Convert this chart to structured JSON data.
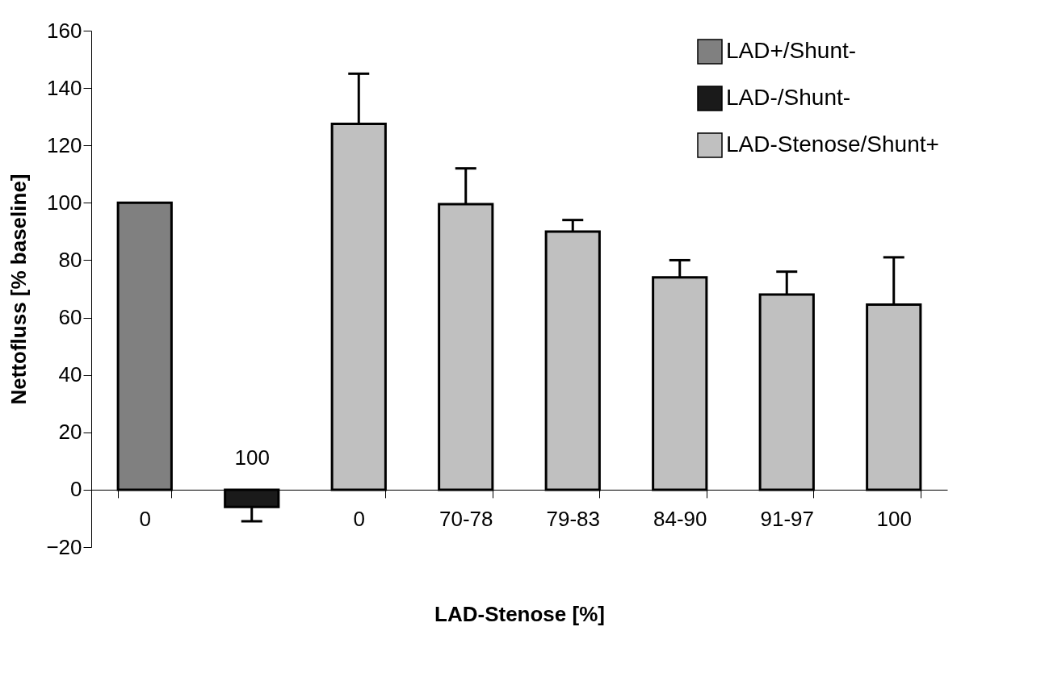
{
  "chart_data": {
    "type": "bar",
    "xlabel": "LAD-Stenose [%]",
    "ylabel": "Nettofluss [% baseline]",
    "categories": [
      "0",
      "100",
      "0",
      "70-78",
      "79-83",
      "84-90",
      "91-97",
      "100"
    ],
    "series": [
      {
        "name": "LAD+/Shunt-",
        "color": "#808080",
        "values": [
          100,
          null,
          null,
          null,
          null,
          null,
          null,
          null
        ],
        "errors": [
          null,
          null,
          null,
          null,
          null,
          null,
          null,
          null
        ]
      },
      {
        "name": "LAD-/Shunt-",
        "color": "#1a1a1a",
        "values": [
          null,
          -6,
          null,
          null,
          null,
          null,
          null,
          null
        ],
        "errors": [
          null,
          [
            -11,
            -6
          ],
          null,
          null,
          null,
          null,
          null,
          null
        ]
      },
      {
        "name": "LAD-Stenose/Shunt+",
        "color": "#c0c0c0",
        "values": [
          null,
          null,
          127.5,
          99.5,
          90,
          74,
          68,
          64.5
        ],
        "errors": [
          null,
          null,
          [
            127.5,
            145
          ],
          [
            99.5,
            112
          ],
          [
            90,
            94
          ],
          [
            74,
            80
          ],
          [
            68,
            76
          ],
          [
            64.5,
            81
          ]
        ]
      }
    ],
    "ylim": [
      -20,
      160
    ],
    "yticks": [
      -20,
      0,
      20,
      40,
      60,
      80,
      100,
      120,
      140,
      160
    ],
    "grid": false,
    "legend": "top right"
  }
}
